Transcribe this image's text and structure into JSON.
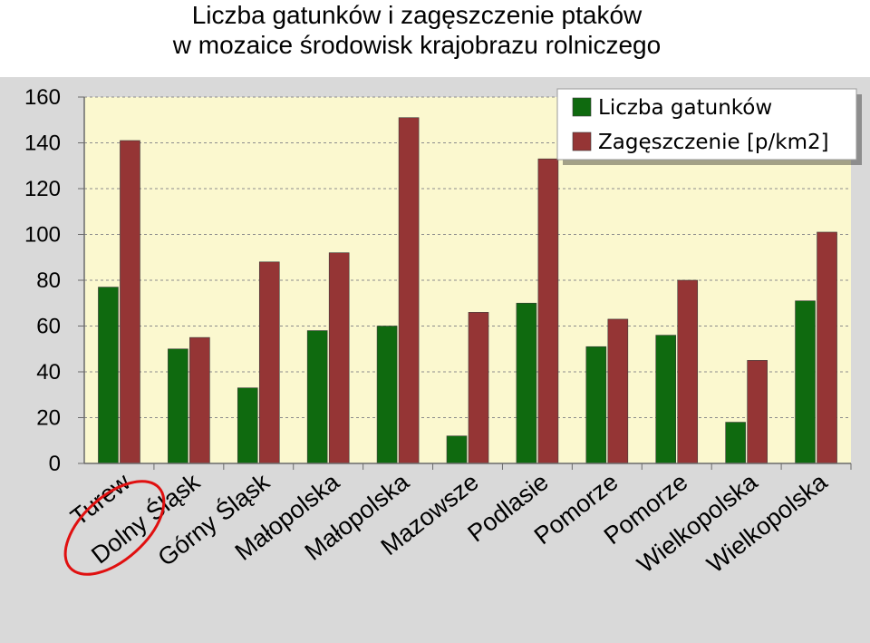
{
  "chart_data": {
    "type": "bar",
    "title_lines": [
      "Liczba gatunków i zagęszczenie ptaków",
      "w mozaice środowisk krajobrazu rolniczego"
    ],
    "categories": [
      "Turew",
      "Dolny Śląsk",
      "Górny Śląsk",
      "Małopolska",
      "Małopolska",
      "Mazowsze",
      "Podlasie",
      "Pomorze",
      "Pomorze",
      "Wielkopolska",
      "Wielkopolska"
    ],
    "series": [
      {
        "name": "Liczba gatunków",
        "color": "#0f6a0f",
        "values": [
          77,
          50,
          33,
          58,
          60,
          12,
          70,
          51,
          56,
          18,
          71
        ]
      },
      {
        "name": "Zagęszczenie [p/km2]",
        "color": "#953535",
        "values": [
          141,
          55,
          88,
          92,
          151,
          66,
          133,
          63,
          80,
          45,
          101
        ]
      }
    ],
    "ylim": [
      0,
      160
    ],
    "yticks": [
      0,
      20,
      40,
      60,
      80,
      100,
      120,
      140,
      160
    ],
    "grid": true,
    "legend_position": "top-right",
    "highlight": {
      "category": "Turew",
      "shape": "red-ellipse",
      "color": "#e01010"
    },
    "plot_background": "#fbf8cf"
  }
}
